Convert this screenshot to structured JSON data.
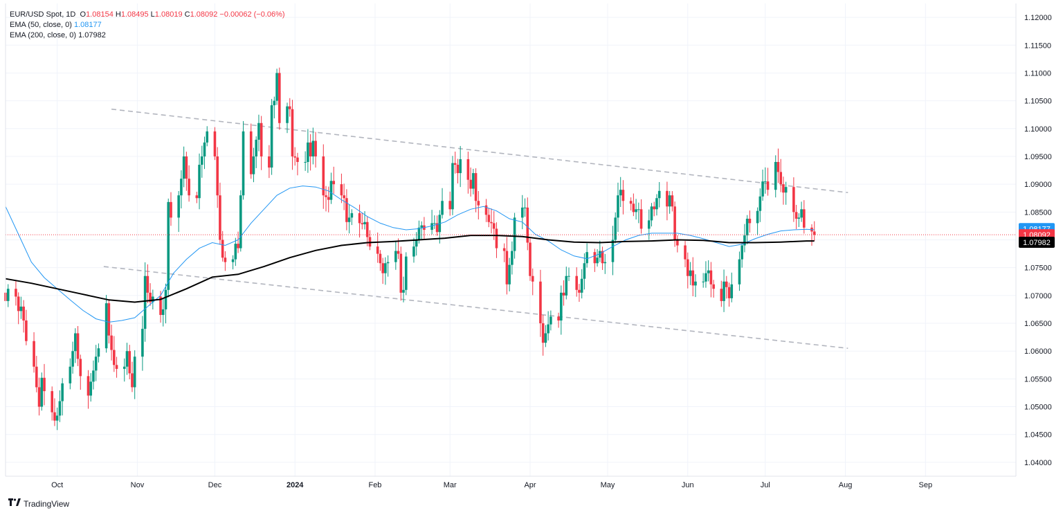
{
  "legend": {
    "symbol": "EUR/USD Spot, 1D",
    "open_label": "O",
    "open": "1.08154",
    "high_label": "H",
    "high": "1.08495",
    "low_label": "L",
    "low": "1.08019",
    "close_label": "C",
    "close": "1.08092",
    "change": "−0.00062 (−0.06%)",
    "ema50_label": "EMA (50, close, 0)",
    "ema50_value": "1.08177",
    "ema200_label": "EMA (200, close, 0)",
    "ema200_value": "1.07982"
  },
  "brand": "TradingView",
  "colors": {
    "up": "#089981",
    "down": "#f23645",
    "ema50": "#2196f3",
    "ema200": "#000000",
    "trend": "#b2b5be"
  },
  "chart_data": {
    "type": "candlestick",
    "title": "EUR/USD Spot, 1D",
    "y_axis": {
      "ticks": [
        "1.12000",
        "1.11500",
        "1.11000",
        "1.10500",
        "1.10000",
        "1.09500",
        "1.09000",
        "1.08500",
        "1.08000",
        "1.07500",
        "1.07000",
        "1.06500",
        "1.06000",
        "1.05500",
        "1.05000",
        "1.04500",
        "1.04000"
      ],
      "range": [
        1.0375,
        1.1225
      ]
    },
    "x_axis": {
      "labels": [
        {
          "label": "Oct",
          "day": 20
        },
        {
          "label": "Nov",
          "day": 51
        },
        {
          "label": "Dec",
          "day": 81
        },
        {
          "label": "2024",
          "day": 112,
          "bold": true
        },
        {
          "label": "Feb",
          "day": 143
        },
        {
          "label": "Mar",
          "day": 172
        },
        {
          "label": "Apr",
          "day": 203
        },
        {
          "label": "May",
          "day": 233
        },
        {
          "label": "Jun",
          "day": 264
        },
        {
          "label": "Jul",
          "day": 294
        },
        {
          "label": "Aug",
          "day": 325
        },
        {
          "label": "Sep",
          "day": 356
        }
      ],
      "day_range": [
        0,
        391
      ]
    },
    "price_labels": [
      {
        "series": "ema50",
        "value": 1.08177,
        "text": "1.08177"
      },
      {
        "series": "last",
        "value": 1.08092,
        "text": "1.08092"
      },
      {
        "series": "ema200",
        "value": 1.07982,
        "text": "1.07982"
      }
    ],
    "last_price": 1.08092,
    "trendlines": [
      {
        "from": [
          41,
          1.1035
        ],
        "to": [
          326,
          1.0885
        ]
      },
      {
        "from": [
          38,
          1.0752
        ],
        "to": [
          326,
          1.0605
        ]
      }
    ],
    "ohlc_closes": [
      [
        0,
        1.069
      ],
      [
        1,
        1.0712
      ],
      [
        4,
        1.0698
      ],
      [
        5,
        1.0672
      ],
      [
        6,
        1.068
      ],
      [
        7,
        1.0655
      ],
      [
        8,
        1.0618
      ],
      [
        11,
        1.0572
      ],
      [
        12,
        1.0535
      ],
      [
        13,
        1.05
      ],
      [
        14,
        1.0552
      ],
      [
        15,
        1.0528
      ],
      [
        18,
        1.049
      ],
      [
        19,
        1.0475
      ],
      [
        20,
        1.0484
      ],
      [
        21,
        1.051
      ],
      [
        22,
        1.0542
      ],
      [
        25,
        1.0572
      ],
      [
        26,
        1.06
      ],
      [
        27,
        1.0632
      ],
      [
        28,
        1.0586
      ],
      [
        29,
        1.0555
      ],
      [
        32,
        1.052
      ],
      [
        33,
        1.0545
      ],
      [
        34,
        1.0565
      ],
      [
        35,
        1.059
      ],
      [
        36,
        1.0605
      ],
      [
        39,
        1.0686
      ],
      [
        40,
        1.0628
      ],
      [
        41,
        1.0602
      ],
      [
        42,
        1.0575
      ],
      [
        43,
        1.0568
      ],
      [
        46,
        1.0572
      ],
      [
        47,
        1.06
      ],
      [
        48,
        1.056
      ],
      [
        49,
        1.0535
      ],
      [
        50,
        1.059
      ],
      [
        53,
        1.064
      ],
      [
        54,
        1.0735
      ],
      [
        55,
        1.0705
      ],
      [
        56,
        1.0688
      ],
      [
        57,
        1.0698
      ],
      [
        60,
        1.0665
      ],
      [
        61,
        1.0675
      ],
      [
        62,
        1.071
      ],
      [
        63,
        1.0868
      ],
      [
        64,
        1.084
      ],
      [
        67,
        1.088
      ],
      [
        68,
        1.091
      ],
      [
        69,
        1.095
      ],
      [
        70,
        1.091
      ],
      [
        71,
        1.088
      ],
      [
        74,
        1.0875
      ],
      [
        75,
        1.0935
      ],
      [
        76,
        1.095
      ],
      [
        77,
        1.0975
      ],
      [
        78,
        1.0995
      ],
      [
        81,
        1.095
      ],
      [
        82,
        1.088
      ],
      [
        83,
        1.08
      ],
      [
        84,
        1.0768
      ],
      [
        85,
        1.076
      ],
      [
        88,
        1.0765
      ],
      [
        89,
        1.0793
      ],
      [
        90,
        1.0785
      ],
      [
        91,
        1.088
      ],
      [
        92,
        1.0995
      ],
      [
        95,
        1.0918
      ],
      [
        96,
        1.095
      ],
      [
        97,
        1.098
      ],
      [
        98,
        1.101
      ],
      [
        99,
        1.095
      ],
      [
        102,
        1.093
      ],
      [
        103,
        1.1042
      ],
      [
        104,
        1.105
      ],
      [
        105,
        1.11
      ],
      [
        106,
        1.101
      ],
      [
        109,
        1.104
      ],
      [
        110,
        1.1035
      ],
      [
        111,
        1.095
      ],
      [
        112,
        1.0948
      ],
      [
        113,
        1.094
      ],
      [
        116,
        1.094
      ],
      [
        117,
        1.0975
      ],
      [
        118,
        1.095
      ],
      [
        119,
        1.0978
      ],
      [
        120,
        1.095
      ],
      [
        123,
        1.088
      ],
      [
        124,
        1.0877
      ],
      [
        125,
        1.0872
      ],
      [
        126,
        1.0906
      ],
      [
        127,
        1.09
      ],
      [
        130,
        1.088
      ],
      [
        131,
        1.0875
      ],
      [
        132,
        1.0832
      ],
      [
        133,
        1.084
      ],
      [
        134,
        1.0848
      ],
      [
        137,
        1.083
      ],
      [
        138,
        1.0828
      ],
      [
        139,
        1.0832
      ],
      [
        140,
        1.0805
      ],
      [
        141,
        1.0788
      ],
      [
        144,
        1.0775
      ],
      [
        145,
        1.0758
      ],
      [
        146,
        1.074
      ],
      [
        147,
        1.0758
      ],
      [
        148,
        1.076
      ],
      [
        151,
        1.078
      ],
      [
        152,
        1.0775
      ],
      [
        153,
        1.0705
      ],
      [
        154,
        1.071
      ],
      [
        155,
        1.077
      ],
      [
        158,
        1.0788
      ],
      [
        159,
        1.08
      ],
      [
        160,
        1.0822
      ],
      [
        161,
        1.0826
      ],
      [
        162,
        1.0818
      ],
      [
        165,
        1.083
      ],
      [
        166,
        1.083
      ],
      [
        167,
        1.0814
      ],
      [
        168,
        1.0845
      ],
      [
        169,
        1.087
      ],
      [
        172,
        1.0855
      ],
      [
        173,
        1.0938
      ],
      [
        174,
        1.0935
      ],
      [
        175,
        1.092
      ],
      [
        176,
        1.0945
      ],
      [
        179,
        1.0908
      ],
      [
        180,
        1.0892
      ],
      [
        181,
        1.092
      ],
      [
        182,
        1.087
      ],
      [
        183,
        1.0862
      ],
      [
        186,
        1.0845
      ],
      [
        187,
        1.0832
      ],
      [
        188,
        1.083
      ],
      [
        189,
        1.082
      ],
      [
        190,
        1.0785
      ],
      [
        193,
        1.078
      ],
      [
        194,
        1.072
      ],
      [
        195,
        1.0755
      ],
      [
        196,
        1.078
      ],
      [
        197,
        1.084
      ],
      [
        200,
        1.0858
      ],
      [
        201,
        1.0858
      ],
      [
        202,
        1.0795
      ],
      [
        203,
        1.0735
      ],
      [
        204,
        1.0725
      ],
      [
        207,
        1.065
      ],
      [
        208,
        1.0615
      ],
      [
        209,
        1.0632
      ],
      [
        210,
        1.0648
      ],
      [
        211,
        1.0662
      ],
      [
        214,
        1.0655
      ],
      [
        215,
        1.0705
      ],
      [
        216,
        1.07
      ],
      [
        217,
        1.0735
      ],
      [
        218,
        1.0735
      ],
      [
        221,
        1.071
      ],
      [
        222,
        1.0705
      ],
      [
        223,
        1.073
      ],
      [
        224,
        1.0758
      ],
      [
        225,
        1.0778
      ],
      [
        228,
        1.0758
      ],
      [
        229,
        1.0768
      ],
      [
        230,
        1.078
      ],
      [
        231,
        1.0758
      ],
      [
        232,
        1.076
      ],
      [
        235,
        1.08
      ],
      [
        236,
        1.084
      ],
      [
        237,
        1.088
      ],
      [
        238,
        1.089
      ],
      [
        239,
        1.087
      ],
      [
        242,
        1.0865
      ],
      [
        243,
        1.085
      ],
      [
        244,
        1.0855
      ],
      [
        245,
        1.0855
      ],
      [
        246,
        1.082
      ],
      [
        249,
        1.0835
      ],
      [
        250,
        1.086
      ],
      [
        251,
        1.0855
      ],
      [
        252,
        1.0875
      ],
      [
        253,
        1.0888
      ],
      [
        256,
        1.086
      ],
      [
        257,
        1.088
      ],
      [
        258,
        1.086
      ],
      [
        259,
        1.08
      ],
      [
        260,
        1.079
      ],
      [
        263,
        1.0765
      ],
      [
        264,
        1.0735
      ],
      [
        265,
        1.0745
      ],
      [
        266,
        1.0718
      ],
      [
        267,
        1.0725
      ],
      [
        270,
        1.0725
      ],
      [
        271,
        1.074
      ],
      [
        272,
        1.0745
      ],
      [
        273,
        1.072
      ],
      [
        274,
        1.0712
      ],
      [
        277,
        1.069
      ],
      [
        278,
        1.0725
      ],
      [
        279,
        1.0715
      ],
      [
        280,
        1.0695
      ],
      [
        281,
        1.072
      ],
      [
        284,
        1.0765
      ],
      [
        285,
        1.079
      ],
      [
        286,
        1.0808
      ],
      [
        287,
        1.0838
      ],
      [
        288,
        1.083
      ],
      [
        291,
        1.0852
      ],
      [
        292,
        1.0878
      ],
      [
        293,
        1.0905
      ],
      [
        294,
        1.0905
      ],
      [
        295,
        1.089
      ],
      [
        298,
        1.094
      ],
      [
        299,
        1.0922
      ],
      [
        300,
        1.09
      ],
      [
        301,
        1.0885
      ],
      [
        302,
        1.0895
      ],
      [
        305,
        1.085
      ],
      [
        306,
        1.0838
      ],
      [
        307,
        1.084
      ],
      [
        308,
        1.0855
      ],
      [
        309,
        1.0822
      ],
      [
        312,
        1.0815
      ],
      [
        313,
        1.0809
      ]
    ],
    "ema50": [
      [
        0,
        1.086
      ],
      [
        5,
        1.081
      ],
      [
        10,
        1.076
      ],
      [
        15,
        1.0732
      ],
      [
        20,
        1.0712
      ],
      [
        25,
        1.0692
      ],
      [
        30,
        1.0673
      ],
      [
        35,
        1.0658
      ],
      [
        40,
        1.0652
      ],
      [
        45,
        1.0655
      ],
      [
        50,
        1.066
      ],
      [
        55,
        1.068
      ],
      [
        60,
        1.07
      ],
      [
        65,
        1.074
      ],
      [
        70,
        1.0765
      ],
      [
        75,
        1.0785
      ],
      [
        80,
        1.0795
      ],
      [
        85,
        1.079
      ],
      [
        90,
        1.08
      ],
      [
        95,
        1.083
      ],
      [
        100,
        1.0855
      ],
      [
        105,
        1.088
      ],
      [
        110,
        1.0893
      ],
      [
        115,
        1.0897
      ],
      [
        120,
        1.0895
      ],
      [
        125,
        1.0888
      ],
      [
        130,
        1.0872
      ],
      [
        135,
        1.0858
      ],
      [
        140,
        1.0842
      ],
      [
        145,
        1.083
      ],
      [
        150,
        1.0822
      ],
      [
        155,
        1.0818
      ],
      [
        160,
        1.082
      ],
      [
        165,
        1.0825
      ],
      [
        170,
        1.0832
      ],
      [
        175,
        1.0845
      ],
      [
        180,
        1.0855
      ],
      [
        185,
        1.086
      ],
      [
        190,
        1.0852
      ],
      [
        195,
        1.0838
      ],
      [
        200,
        1.0832
      ],
      [
        205,
        1.081
      ],
      [
        210,
        1.0798
      ],
      [
        215,
        1.0782
      ],
      [
        220,
        1.0771
      ],
      [
        225,
        1.0766
      ],
      [
        230,
        1.0775
      ],
      [
        235,
        1.0788
      ],
      [
        240,
        1.08
      ],
      [
        245,
        1.0808
      ],
      [
        250,
        1.0812
      ],
      [
        255,
        1.0812
      ],
      [
        260,
        1.0812
      ],
      [
        265,
        1.0808
      ],
      [
        270,
        1.0802
      ],
      [
        275,
        1.0795
      ],
      [
        280,
        1.0788
      ],
      [
        285,
        1.0792
      ],
      [
        290,
        1.0802
      ],
      [
        295,
        1.081
      ],
      [
        300,
        1.0816
      ],
      [
        305,
        1.0818
      ],
      [
        310,
        1.0819
      ],
      [
        313,
        1.0818
      ]
    ],
    "ema200": [
      [
        0,
        1.073
      ],
      [
        10,
        1.0722
      ],
      [
        20,
        1.0712
      ],
      [
        30,
        1.0702
      ],
      [
        40,
        1.0692
      ],
      [
        50,
        1.0688
      ],
      [
        60,
        1.0693
      ],
      [
        70,
        1.0712
      ],
      [
        80,
        1.0733
      ],
      [
        90,
        1.0738
      ],
      [
        100,
        1.0752
      ],
      [
        110,
        1.0768
      ],
      [
        120,
        1.0781
      ],
      [
        130,
        1.079
      ],
      [
        140,
        1.0795
      ],
      [
        150,
        1.0797
      ],
      [
        160,
        1.08
      ],
      [
        170,
        1.0803
      ],
      [
        180,
        1.0808
      ],
      [
        190,
        1.0808
      ],
      [
        200,
        1.0806
      ],
      [
        210,
        1.08
      ],
      [
        220,
        1.0796
      ],
      [
        230,
        1.0795
      ],
      [
        240,
        1.0797
      ],
      [
        250,
        1.0798
      ],
      [
        260,
        1.08
      ],
      [
        270,
        1.0799
      ],
      [
        280,
        1.0795
      ],
      [
        290,
        1.0795
      ],
      [
        300,
        1.0796
      ],
      [
        310,
        1.0798
      ],
      [
        313,
        1.0798
      ]
    ]
  }
}
